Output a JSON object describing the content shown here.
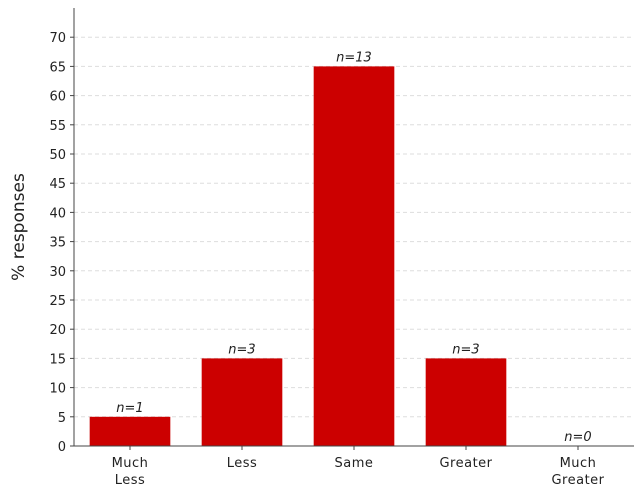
{
  "chart_data": {
    "type": "bar",
    "categories": [
      [
        "Much",
        "Less"
      ],
      [
        "Less"
      ],
      [
        "Same"
      ],
      [
        "Greater"
      ],
      [
        "Much",
        "Greater"
      ]
    ],
    "values": [
      5,
      15,
      65,
      15,
      0
    ],
    "data_labels": [
      "n=1",
      "n=3",
      "n=13",
      "n=3",
      "n=0"
    ],
    "xlabel": "",
    "ylabel": "% responses",
    "ylim": [
      0,
      75
    ],
    "yticks": [
      0,
      5,
      10,
      15,
      20,
      25,
      30,
      35,
      40,
      45,
      50,
      55,
      60,
      65,
      70
    ],
    "grid": true,
    "bar_color": "#cc0000",
    "grid_color": "#dddddd"
  }
}
